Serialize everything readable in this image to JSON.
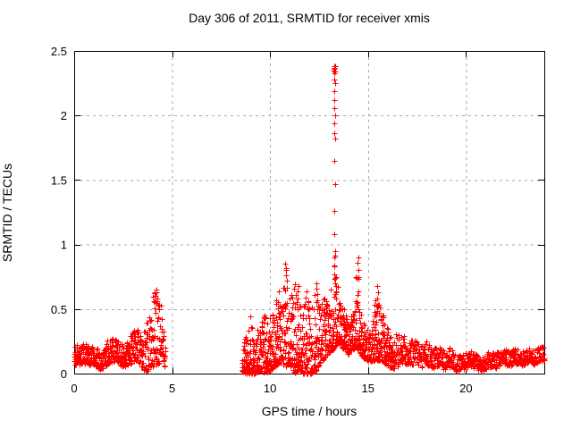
{
  "chart_data": {
    "type": "scatter",
    "title": "Day 306 of 2011, SRMTID for receiver xmis",
    "xlabel": "GPS time / hours",
    "ylabel": "SRMTID / TECUs",
    "xlim": [
      0,
      24
    ],
    "ylim": [
      0,
      2.5
    ],
    "xticks": [
      [
        0,
        "0"
      ],
      [
        5,
        "5"
      ],
      [
        10,
        "10"
      ],
      [
        15,
        "15"
      ],
      [
        20,
        "20"
      ]
    ],
    "yticks": [
      [
        0,
        "0"
      ],
      [
        0.5,
        "0.5"
      ],
      [
        1,
        "1"
      ],
      [
        1.5,
        "1.5"
      ],
      [
        2,
        "2"
      ],
      [
        2.5,
        "2.5"
      ]
    ],
    "grid": "dotted",
    "legend": "none",
    "marker": {
      "shape": "plus",
      "color": "#ff0000",
      "size": 7
    },
    "colors": {
      "axis": "#000000",
      "grid": "#a8a8a8",
      "text": "#000000",
      "background": "#ffffff"
    },
    "series_name": "SRMTID",
    "generation_seed": 20110306,
    "envelope_segments": [
      {
        "t0": 0.0,
        "t1": 4.65,
        "n": 500,
        "bias": 1.5,
        "band": [
          [
            0,
            0.06,
            0.22
          ],
          [
            0.5,
            0.08,
            0.24
          ],
          [
            1.0,
            0.06,
            0.22
          ],
          [
            1.35,
            0.03,
            0.18
          ],
          [
            1.7,
            0.07,
            0.26
          ],
          [
            2.1,
            0.1,
            0.28
          ],
          [
            2.5,
            0.05,
            0.22
          ],
          [
            2.9,
            0.08,
            0.3
          ],
          [
            3.2,
            0.1,
            0.36
          ],
          [
            3.5,
            0.04,
            0.3
          ],
          [
            3.6,
            0.02,
            0.35
          ],
          [
            3.75,
            0.02,
            0.42
          ],
          [
            3.9,
            0.05,
            0.5
          ],
          [
            4.05,
            0.05,
            0.63
          ],
          [
            4.25,
            0.05,
            0.64
          ],
          [
            4.4,
            0.12,
            0.55
          ],
          [
            4.55,
            0.1,
            0.4
          ],
          [
            4.65,
            0.02,
            0.2
          ]
        ]
      },
      {
        "t0": 8.55,
        "t1": 16.35,
        "n": 1150,
        "bias": 2.0,
        "band": [
          [
            8.55,
            0.02,
            0.15
          ],
          [
            8.8,
            0.0,
            0.35
          ],
          [
            9.0,
            0.0,
            0.45
          ],
          [
            9.2,
            0.0,
            0.28
          ],
          [
            9.5,
            0.02,
            0.38
          ],
          [
            9.8,
            0.0,
            0.5
          ],
          [
            10.0,
            0.02,
            0.45
          ],
          [
            10.2,
            0.05,
            0.55
          ],
          [
            10.45,
            0.08,
            0.65
          ],
          [
            10.6,
            0.08,
            0.6
          ],
          [
            10.8,
            0.05,
            0.85
          ],
          [
            10.95,
            0.08,
            0.6
          ],
          [
            11.25,
            0.0,
            0.7
          ],
          [
            11.45,
            0.03,
            0.7
          ],
          [
            11.65,
            0.0,
            0.5
          ],
          [
            11.85,
            0.0,
            0.66
          ],
          [
            12.05,
            0.0,
            0.45
          ],
          [
            12.35,
            0.02,
            0.72
          ],
          [
            12.55,
            0.08,
            0.5
          ],
          [
            12.75,
            0.12,
            0.6
          ],
          [
            12.95,
            0.15,
            0.55
          ],
          [
            13.15,
            0.18,
            0.7
          ],
          [
            13.3,
            0.2,
            0.95
          ],
          [
            13.45,
            0.25,
            0.72
          ],
          [
            13.6,
            0.22,
            0.55
          ],
          [
            13.8,
            0.18,
            0.5
          ],
          [
            14.0,
            0.15,
            0.42
          ],
          [
            14.2,
            0.18,
            0.48
          ],
          [
            14.45,
            0.2,
            0.88
          ],
          [
            14.6,
            0.15,
            0.55
          ],
          [
            14.8,
            0.12,
            0.4
          ],
          [
            15.0,
            0.1,
            0.32
          ],
          [
            15.2,
            0.1,
            0.36
          ],
          [
            15.45,
            0.1,
            0.68
          ],
          [
            15.65,
            0.1,
            0.52
          ],
          [
            15.85,
            0.08,
            0.45
          ],
          [
            16.1,
            0.05,
            0.3
          ],
          [
            16.35,
            0.04,
            0.25
          ]
        ]
      },
      {
        "t0": 16.35,
        "t1": 24.0,
        "n": 640,
        "bias": 1.3,
        "band": [
          [
            16.35,
            0.05,
            0.3
          ],
          [
            16.6,
            0.06,
            0.35
          ],
          [
            16.8,
            0.08,
            0.3
          ],
          [
            17.1,
            0.05,
            0.25
          ],
          [
            17.4,
            0.08,
            0.28
          ],
          [
            17.7,
            0.04,
            0.22
          ],
          [
            18.0,
            0.07,
            0.26
          ],
          [
            18.3,
            0.04,
            0.2
          ],
          [
            18.6,
            0.06,
            0.22
          ],
          [
            18.9,
            0.03,
            0.17
          ],
          [
            19.2,
            0.05,
            0.2
          ],
          [
            19.5,
            0.02,
            0.14
          ],
          [
            19.9,
            0.03,
            0.15
          ],
          [
            20.2,
            0.05,
            0.19
          ],
          [
            20.5,
            0.03,
            0.15
          ],
          [
            20.9,
            0.02,
            0.13
          ],
          [
            21.2,
            0.05,
            0.18
          ],
          [
            21.5,
            0.04,
            0.16
          ],
          [
            21.9,
            0.07,
            0.2
          ],
          [
            22.2,
            0.05,
            0.17
          ],
          [
            22.5,
            0.08,
            0.2
          ],
          [
            22.9,
            0.06,
            0.18
          ],
          [
            23.2,
            0.09,
            0.21
          ],
          [
            23.5,
            0.07,
            0.19
          ],
          [
            23.8,
            0.1,
            0.22
          ],
          [
            24.0,
            0.1,
            0.2
          ]
        ]
      }
    ],
    "spike_points": [
      [
        13.3,
        2.38
      ],
      [
        13.27,
        2.37
      ],
      [
        13.33,
        2.38
      ],
      [
        13.3,
        2.36
      ],
      [
        13.25,
        2.35
      ],
      [
        13.31,
        2.34
      ],
      [
        13.28,
        2.33
      ],
      [
        13.29,
        2.28
      ],
      [
        13.31,
        2.25
      ],
      [
        13.3,
        2.19
      ],
      [
        13.28,
        2.12
      ],
      [
        13.3,
        2.06
      ],
      [
        13.31,
        2.0
      ],
      [
        13.29,
        1.94
      ],
      [
        13.3,
        1.86
      ],
      [
        13.33,
        1.82
      ],
      [
        13.3,
        1.65
      ],
      [
        13.31,
        1.47
      ],
      [
        13.29,
        1.26
      ],
      [
        13.3,
        1.08
      ],
      [
        13.32,
        0.95
      ],
      [
        13.27,
        0.9
      ],
      [
        10.78,
        0.85
      ],
      [
        10.82,
        0.8
      ],
      [
        10.8,
        0.76
      ],
      [
        11.45,
        0.68
      ],
      [
        11.42,
        0.64
      ],
      [
        12.35,
        0.7
      ],
      [
        12.38,
        0.66
      ],
      [
        13.36,
        0.75
      ],
      [
        13.34,
        0.7
      ],
      [
        13.38,
        0.68
      ],
      [
        13.35,
        0.63
      ],
      [
        13.37,
        0.58
      ],
      [
        14.5,
        0.9
      ],
      [
        14.47,
        0.86
      ],
      [
        14.52,
        0.8
      ],
      [
        14.5,
        0.75
      ],
      [
        15.48,
        0.68
      ],
      [
        15.52,
        0.63
      ],
      [
        9.0,
        0.44
      ],
      [
        11.85,
        0.64
      ],
      [
        4.12,
        0.62
      ],
      [
        4.18,
        0.65
      ],
      [
        4.22,
        0.63
      ],
      [
        4.15,
        0.6
      ],
      [
        4.25,
        0.58
      ],
      [
        4.2,
        0.55
      ],
      [
        4.08,
        0.56
      ]
    ]
  }
}
